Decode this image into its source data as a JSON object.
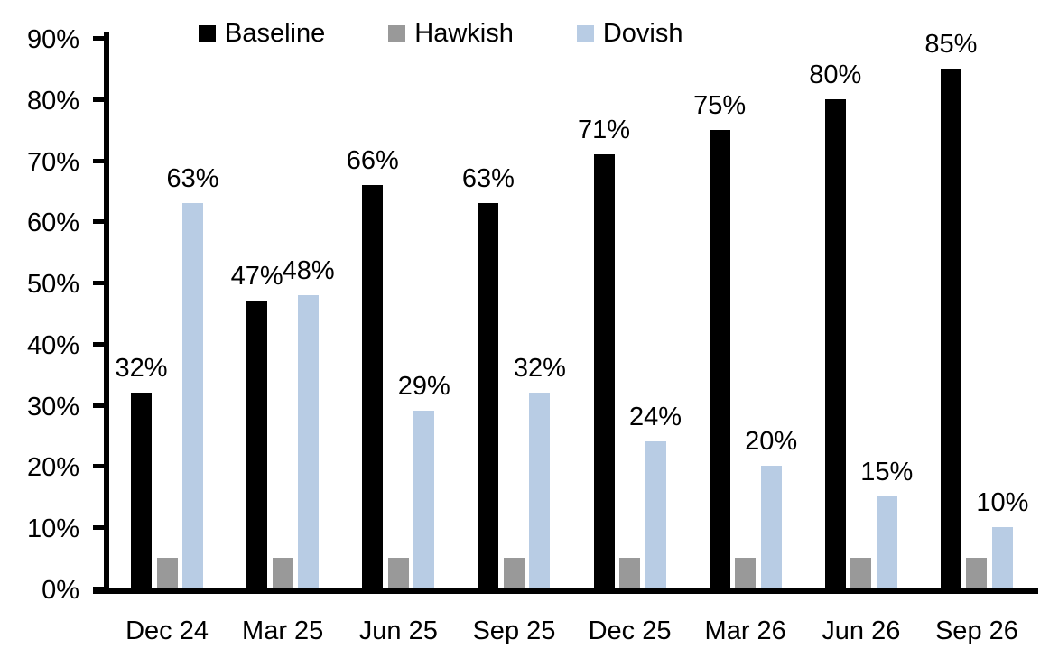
{
  "chart_data": {
    "type": "bar",
    "title": "",
    "categories": [
      "Dec 24",
      "Mar 25",
      "Jun 25",
      "Sep 25",
      "Dec 25",
      "Mar 26",
      "Jun 26",
      "Sep 26"
    ],
    "series": [
      {
        "name": "Baseline",
        "color": "#000000",
        "values": [
          32,
          47,
          66,
          63,
          71,
          75,
          80,
          85
        ],
        "labels": [
          "32%",
          "47%",
          "66%",
          "63%",
          "71%",
          "75%",
          "80%",
          "85%"
        ]
      },
      {
        "name": "Hawkish",
        "color": "#999999",
        "values": [
          5,
          5,
          5,
          5,
          5,
          5,
          5,
          5
        ],
        "labels": null
      },
      {
        "name": "Dovish",
        "color": "#b8cce4",
        "values": [
          63,
          48,
          29,
          32,
          24,
          20,
          15,
          10
        ],
        "labels": [
          "63%",
          "48%",
          "29%",
          "32%",
          "24%",
          "20%",
          "15%",
          "10%"
        ]
      }
    ],
    "ytick_values": [
      0,
      10,
      20,
      30,
      40,
      50,
      60,
      70,
      80,
      90
    ],
    "ytick_labels": [
      "0%",
      "10%",
      "20%",
      "30%",
      "40%",
      "50%",
      "60%",
      "70%",
      "80%",
      "90%"
    ],
    "ylim": [
      0,
      90
    ],
    "xlabel": "",
    "ylabel": "",
    "legend_position": "top",
    "grid": false,
    "axis_color": "#000000",
    "background_color": "#ffffff"
  }
}
